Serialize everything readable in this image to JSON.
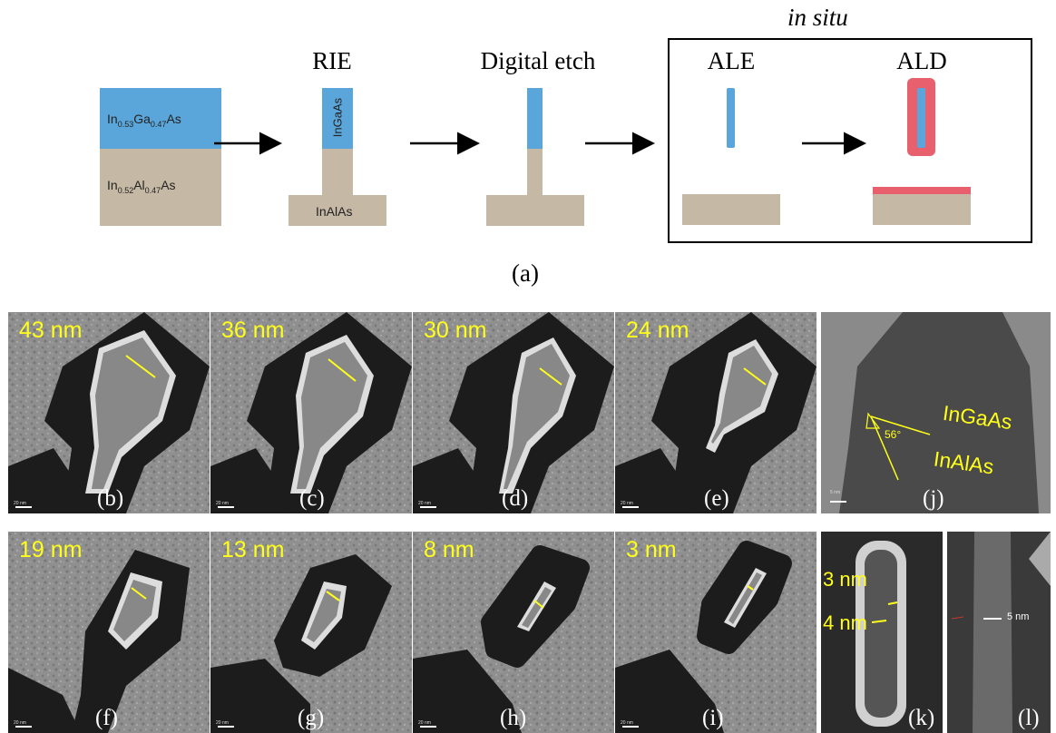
{
  "schematic": {
    "in_situ_label": "in situ",
    "steps": [
      "RIE",
      "Digital etch",
      "ALE",
      "ALD"
    ],
    "layer_top": {
      "main": "In",
      "sub1": "0.53",
      "mid": "Ga",
      "sub2": "0.47",
      "end": "As"
    },
    "layer_bottom": {
      "main": "In",
      "sub1": "0.52",
      "mid": "Al",
      "sub2": "0.47",
      "end": "As"
    },
    "rie_fin_label": "InGaAs",
    "rie_base_label": "InAlAs",
    "caption": "(a)",
    "colors": {
      "ingaas": "#5aa6da",
      "inalas": "#c5b8a4",
      "oxide": "#e8606e"
    }
  },
  "tem_panels": [
    {
      "letter": "(b)",
      "size": "43 nm",
      "scale": "20 nm"
    },
    {
      "letter": "(c)",
      "size": "36 nm",
      "scale": "20 nm"
    },
    {
      "letter": "(d)",
      "size": "30 nm",
      "scale": "20 nm"
    },
    {
      "letter": "(e)",
      "size": "24 nm",
      "scale": "20 nm"
    },
    {
      "letter": "(f)",
      "size": "19 nm",
      "scale": "20 nm"
    },
    {
      "letter": "(g)",
      "size": "13 nm",
      "scale": "20 nm"
    },
    {
      "letter": "(h)",
      "size": "8 nm",
      "scale": "20 nm"
    },
    {
      "letter": "(i)",
      "size": "3 nm",
      "scale": "20 nm"
    }
  ],
  "panel_j": {
    "letter": "(j)",
    "label_top": "InGaAs",
    "label_bottom": "InAlAs",
    "angle": "56°",
    "scale": "5 nm"
  },
  "panel_k": {
    "letter": "(k)",
    "label_top": "3 nm",
    "label_bottom": "4 nm"
  },
  "panel_l": {
    "letter": "(l)",
    "label": "5 nm"
  }
}
